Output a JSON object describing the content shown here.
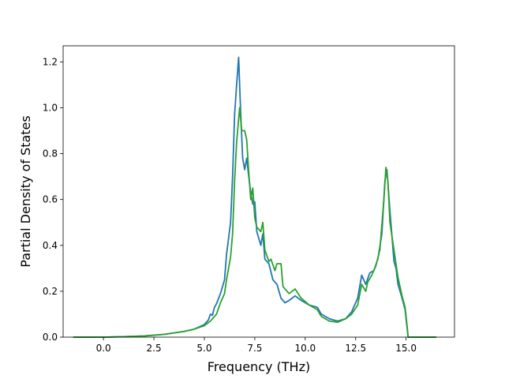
{
  "chart_data": {
    "type": "line",
    "title": "",
    "xlabel": "Frequency (THz)",
    "ylabel": "Partial Density of States",
    "xlim": [
      -2.0,
      17.4
    ],
    "ylim": [
      0.0,
      1.27
    ],
    "xticks": [
      0.0,
      2.5,
      5.0,
      7.5,
      10.0,
      12.5,
      15.0
    ],
    "xtick_labels": [
      "0.0",
      "2.5",
      "5.0",
      "7.5",
      "10.0",
      "12.5",
      "15.0"
    ],
    "yticks": [
      0.0,
      0.2,
      0.4,
      0.6,
      0.8,
      1.0,
      1.2
    ],
    "ytick_labels": [
      "0.0",
      "0.2",
      "0.4",
      "0.6",
      "0.8",
      "1.0",
      "1.2"
    ],
    "grid": false,
    "legend": "none",
    "series": [
      {
        "color": "#1f77b4",
        "points": [
          [
            -1.5,
            0.0
          ],
          [
            -0.5,
            0.0
          ],
          [
            0.0,
            0.0
          ],
          [
            1.0,
            0.002
          ],
          [
            2.0,
            0.005
          ],
          [
            3.0,
            0.012
          ],
          [
            4.0,
            0.025
          ],
          [
            4.5,
            0.035
          ],
          [
            5.0,
            0.055
          ],
          [
            5.2,
            0.075
          ],
          [
            5.3,
            0.1
          ],
          [
            5.4,
            0.095
          ],
          [
            5.5,
            0.13
          ],
          [
            5.6,
            0.145
          ],
          [
            5.8,
            0.19
          ],
          [
            6.0,
            0.25
          ],
          [
            6.1,
            0.36
          ],
          [
            6.3,
            0.5
          ],
          [
            6.4,
            0.7
          ],
          [
            6.5,
            0.97
          ],
          [
            6.6,
            1.1
          ],
          [
            6.7,
            1.22
          ],
          [
            6.8,
            0.98
          ],
          [
            6.9,
            0.78
          ],
          [
            7.0,
            0.73
          ],
          [
            7.1,
            0.78
          ],
          [
            7.2,
            0.7
          ],
          [
            7.3,
            0.63
          ],
          [
            7.4,
            0.58
          ],
          [
            7.5,
            0.59
          ],
          [
            7.6,
            0.46
          ],
          [
            7.8,
            0.4
          ],
          [
            7.9,
            0.45
          ],
          [
            8.0,
            0.34
          ],
          [
            8.2,
            0.32
          ],
          [
            8.4,
            0.25
          ],
          [
            8.6,
            0.23
          ],
          [
            8.8,
            0.17
          ],
          [
            9.0,
            0.15
          ],
          [
            9.2,
            0.16
          ],
          [
            9.5,
            0.18
          ],
          [
            9.8,
            0.16
          ],
          [
            10.2,
            0.14
          ],
          [
            10.6,
            0.13
          ],
          [
            10.8,
            0.1
          ],
          [
            11.2,
            0.08
          ],
          [
            11.6,
            0.07
          ],
          [
            12.0,
            0.08
          ],
          [
            12.3,
            0.11
          ],
          [
            12.6,
            0.17
          ],
          [
            12.8,
            0.27
          ],
          [
            13.0,
            0.23
          ],
          [
            13.2,
            0.28
          ],
          [
            13.4,
            0.29
          ],
          [
            13.6,
            0.34
          ],
          [
            13.8,
            0.45
          ],
          [
            13.95,
            0.68
          ],
          [
            14.05,
            0.73
          ],
          [
            14.2,
            0.55
          ],
          [
            14.4,
            0.33
          ],
          [
            14.5,
            0.3
          ],
          [
            14.6,
            0.23
          ],
          [
            14.8,
            0.17
          ],
          [
            14.95,
            0.12
          ],
          [
            15.05,
            0.04
          ],
          [
            15.1,
            0.0
          ],
          [
            16.0,
            0.0
          ],
          [
            16.5,
            0.0
          ]
        ]
      },
      {
        "color": "#2ca02c",
        "points": [
          [
            -1.5,
            0.0
          ],
          [
            -0.5,
            0.0
          ],
          [
            0.0,
            0.0
          ],
          [
            1.0,
            0.002
          ],
          [
            2.0,
            0.005
          ],
          [
            3.0,
            0.012
          ],
          [
            4.0,
            0.025
          ],
          [
            4.5,
            0.035
          ],
          [
            5.0,
            0.05
          ],
          [
            5.3,
            0.07
          ],
          [
            5.6,
            0.1
          ],
          [
            5.8,
            0.15
          ],
          [
            6.0,
            0.19
          ],
          [
            6.1,
            0.25
          ],
          [
            6.3,
            0.35
          ],
          [
            6.4,
            0.45
          ],
          [
            6.5,
            0.68
          ],
          [
            6.6,
            0.85
          ],
          [
            6.75,
            1.0
          ],
          [
            6.85,
            0.9
          ],
          [
            7.0,
            0.9
          ],
          [
            7.1,
            0.86
          ],
          [
            7.2,
            0.72
          ],
          [
            7.3,
            0.6
          ],
          [
            7.4,
            0.65
          ],
          [
            7.5,
            0.52
          ],
          [
            7.6,
            0.48
          ],
          [
            7.8,
            0.46
          ],
          [
            7.9,
            0.5
          ],
          [
            8.0,
            0.38
          ],
          [
            8.2,
            0.33
          ],
          [
            8.3,
            0.34
          ],
          [
            8.5,
            0.29
          ],
          [
            8.6,
            0.32
          ],
          [
            8.8,
            0.32
          ],
          [
            8.9,
            0.22
          ],
          [
            9.2,
            0.19
          ],
          [
            9.5,
            0.21
          ],
          [
            9.8,
            0.17
          ],
          [
            10.2,
            0.14
          ],
          [
            10.6,
            0.12
          ],
          [
            10.8,
            0.09
          ],
          [
            11.2,
            0.07
          ],
          [
            11.6,
            0.065
          ],
          [
            12.0,
            0.08
          ],
          [
            12.3,
            0.1
          ],
          [
            12.6,
            0.14
          ],
          [
            12.8,
            0.23
          ],
          [
            13.0,
            0.2
          ],
          [
            13.1,
            0.24
          ],
          [
            13.3,
            0.27
          ],
          [
            13.5,
            0.31
          ],
          [
            13.7,
            0.38
          ],
          [
            13.9,
            0.6
          ],
          [
            14.0,
            0.74
          ],
          [
            14.1,
            0.68
          ],
          [
            14.2,
            0.5
          ],
          [
            14.4,
            0.38
          ],
          [
            14.6,
            0.26
          ],
          [
            14.8,
            0.18
          ],
          [
            14.95,
            0.13
          ],
          [
            15.05,
            0.05
          ],
          [
            15.1,
            0.0
          ],
          [
            16.0,
            0.0
          ],
          [
            16.5,
            0.0
          ]
        ]
      }
    ]
  }
}
